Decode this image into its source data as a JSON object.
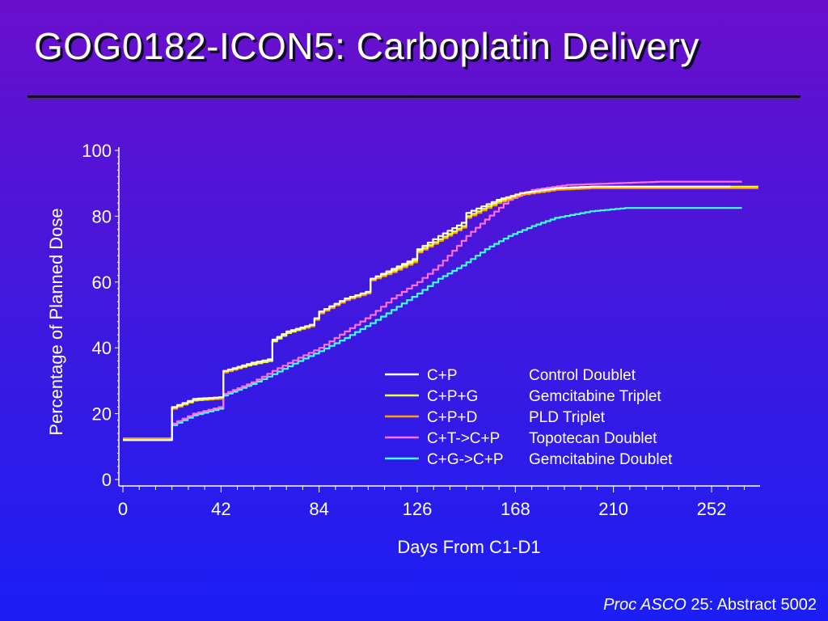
{
  "slide": {
    "title": "GOG0182-ICON5:  Carboplatin Delivery",
    "citation_journal": "Proc ASCO",
    "citation_rest": " 25: Abstract 5002"
  },
  "colors": {
    "background_top": "#6a0fcc",
    "background_bottom": "#1b1ef5",
    "text": "#ffffff"
  },
  "chart_data": {
    "type": "line",
    "title": "",
    "xlabel": "Days From C1-D1",
    "ylabel": "Percentage of Planned Dose",
    "xlim": [
      0,
      270
    ],
    "ylim": [
      0,
      100
    ],
    "xticks": [
      0,
      42,
      84,
      126,
      168,
      210,
      252
    ],
    "yticks": [
      0,
      20,
      40,
      60,
      80,
      100
    ],
    "grid": false,
    "legend_position": "lower-right",
    "series": [
      {
        "name": "C+P",
        "description": "Control Doublet",
        "color": "#ffffff",
        "points": [
          [
            0,
            12
          ],
          [
            19,
            12
          ],
          [
            21,
            22
          ],
          [
            30,
            24.5
          ],
          [
            41,
            25
          ],
          [
            43,
            33
          ],
          [
            55,
            35.5
          ],
          [
            62,
            36.5
          ],
          [
            64,
            42.5
          ],
          [
            70,
            45
          ],
          [
            80,
            47
          ],
          [
            84,
            51
          ],
          [
            95,
            55
          ],
          [
            104,
            57
          ],
          [
            106,
            61
          ],
          [
            115,
            64
          ],
          [
            124,
            67
          ],
          [
            126,
            70
          ],
          [
            135,
            74
          ],
          [
            145,
            78
          ],
          [
            147,
            81
          ],
          [
            160,
            85
          ],
          [
            170,
            87
          ],
          [
            185,
            88.5
          ],
          [
            200,
            89
          ],
          [
            220,
            89
          ],
          [
            260,
            89
          ]
        ]
      },
      {
        "name": "C+P+G",
        "description": "Gemcitabine Triplet",
        "color": "#e8ff3a",
        "points": [
          [
            0,
            12
          ],
          [
            19,
            12
          ],
          [
            21,
            22
          ],
          [
            30,
            24
          ],
          [
            41,
            25
          ],
          [
            43,
            33
          ],
          [
            55,
            35
          ],
          [
            62,
            36
          ],
          [
            64,
            42
          ],
          [
            70,
            44.5
          ],
          [
            80,
            47
          ],
          [
            84,
            51
          ],
          [
            95,
            55
          ],
          [
            104,
            57
          ],
          [
            106,
            61
          ],
          [
            115,
            63.5
          ],
          [
            124,
            66.5
          ],
          [
            126,
            69.5
          ],
          [
            135,
            73
          ],
          [
            145,
            77
          ],
          [
            147,
            80
          ],
          [
            160,
            84.5
          ],
          [
            170,
            87
          ],
          [
            185,
            88.5
          ],
          [
            200,
            89
          ],
          [
            220,
            89
          ],
          [
            272,
            89
          ]
        ]
      },
      {
        "name": "C+P+D",
        "description": "PLD Triplet",
        "color": "#ffa000",
        "points": [
          [
            0,
            12.5
          ],
          [
            19,
            12.5
          ],
          [
            21,
            21.5
          ],
          [
            30,
            24
          ],
          [
            41,
            24.5
          ],
          [
            43,
            32.5
          ],
          [
            55,
            35
          ],
          [
            62,
            36
          ],
          [
            64,
            42
          ],
          [
            70,
            44.5
          ],
          [
            80,
            46.5
          ],
          [
            84,
            50.5
          ],
          [
            95,
            54.5
          ],
          [
            104,
            56.5
          ],
          [
            106,
            60.5
          ],
          [
            115,
            63
          ],
          [
            124,
            66
          ],
          [
            126,
            69
          ],
          [
            135,
            72.5
          ],
          [
            145,
            76.5
          ],
          [
            147,
            79.5
          ],
          [
            160,
            84
          ],
          [
            170,
            86.5
          ],
          [
            185,
            88
          ],
          [
            200,
            88.5
          ],
          [
            220,
            88.5
          ],
          [
            272,
            88.5
          ]
        ]
      },
      {
        "name": "C+T->C+P",
        "description": "Topotecan Doublet",
        "color": "#ff70e8",
        "points": [
          [
            0,
            12
          ],
          [
            19,
            12
          ],
          [
            21,
            17
          ],
          [
            30,
            20
          ],
          [
            41,
            22
          ],
          [
            43,
            26
          ],
          [
            55,
            29.5
          ],
          [
            64,
            33
          ],
          [
            75,
            37
          ],
          [
            84,
            40
          ],
          [
            95,
            45
          ],
          [
            106,
            50
          ],
          [
            115,
            55
          ],
          [
            126,
            60
          ],
          [
            135,
            65
          ],
          [
            147,
            74
          ],
          [
            155,
            79
          ],
          [
            165,
            85
          ],
          [
            175,
            88
          ],
          [
            190,
            89.5
          ],
          [
            210,
            90
          ],
          [
            230,
            90.5
          ],
          [
            265,
            90.5
          ]
        ]
      },
      {
        "name": "C+G->C+P",
        "description": "Gemcitabine Doublet",
        "color": "#40ffff",
        "points": [
          [
            0,
            12
          ],
          [
            19,
            12
          ],
          [
            21,
            16.5
          ],
          [
            30,
            19.5
          ],
          [
            41,
            21.5
          ],
          [
            43,
            25.5
          ],
          [
            55,
            29
          ],
          [
            64,
            32
          ],
          [
            75,
            36
          ],
          [
            84,
            39
          ],
          [
            95,
            43
          ],
          [
            106,
            47.5
          ],
          [
            115,
            51.5
          ],
          [
            126,
            56.5
          ],
          [
            135,
            61
          ],
          [
            145,
            65
          ],
          [
            155,
            70
          ],
          [
            165,
            74
          ],
          [
            175,
            77
          ],
          [
            185,
            79.5
          ],
          [
            200,
            81.5
          ],
          [
            215,
            82.5
          ],
          [
            240,
            82.5
          ],
          [
            265,
            82.5
          ]
        ]
      }
    ]
  }
}
